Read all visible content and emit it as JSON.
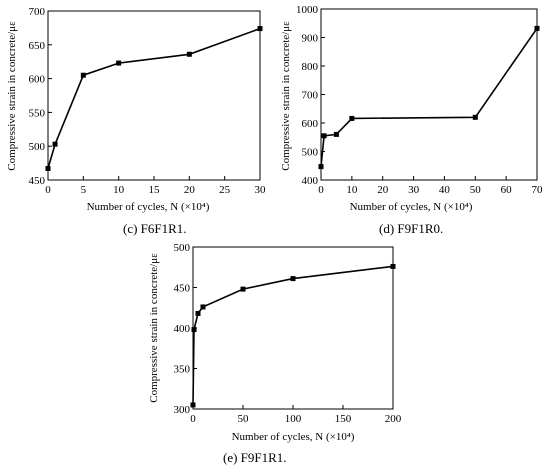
{
  "figure": {
    "panels": [
      {
        "id": "c",
        "caption": "(c) F6F1R1."
      },
      {
        "id": "d",
        "caption": "(d) F9F1R0."
      },
      {
        "id": "e",
        "caption": "(e) F9F1R1."
      }
    ]
  },
  "chart_data": [
    {
      "type": "line",
      "title": "",
      "xlabel": "Number of cycles, N (×10⁴)",
      "ylabel": "Compressive strain in concrete/με",
      "xlim": [
        0,
        30
      ],
      "ylim": [
        450,
        700
      ],
      "xticks": [
        0,
        5,
        10,
        15,
        20,
        25,
        30
      ],
      "yticks": [
        450,
        500,
        550,
        600,
        650,
        700
      ],
      "grid": false,
      "series": [
        {
          "x": [
            0,
            1,
            5,
            10,
            20,
            30
          ],
          "y": [
            467,
            503,
            605,
            623,
            636,
            674
          ]
        }
      ]
    },
    {
      "type": "line",
      "title": "",
      "xlabel": "Number of cycles, N (×10⁴)",
      "ylabel": "Compressive strain in concrete/με",
      "xlim": [
        0,
        70
      ],
      "ylim": [
        400,
        1000
      ],
      "xticks": [
        0,
        10,
        20,
        30,
        40,
        50,
        60,
        70
      ],
      "yticks": [
        400,
        500,
        600,
        700,
        800,
        900,
        1000
      ],
      "grid": false,
      "series": [
        {
          "x": [
            0,
            1,
            5,
            10,
            50,
            70
          ],
          "y": [
            447,
            555,
            560,
            616,
            620,
            932
          ]
        }
      ]
    },
    {
      "type": "line",
      "title": "",
      "xlabel": "Number of cycles, N (×10⁴)",
      "ylabel": "Compressive strain in concrete/με",
      "xlim": [
        0,
        200
      ],
      "ylim": [
        300,
        500
      ],
      "xticks": [
        0,
        50,
        100,
        150,
        200
      ],
      "yticks": [
        300,
        350,
        400,
        450,
        500
      ],
      "grid": false,
      "series": [
        {
          "x": [
            0,
            1,
            5,
            10,
            50,
            100,
            200
          ],
          "y": [
            305,
            398,
            418,
            426,
            448,
            461,
            476
          ]
        }
      ]
    }
  ]
}
